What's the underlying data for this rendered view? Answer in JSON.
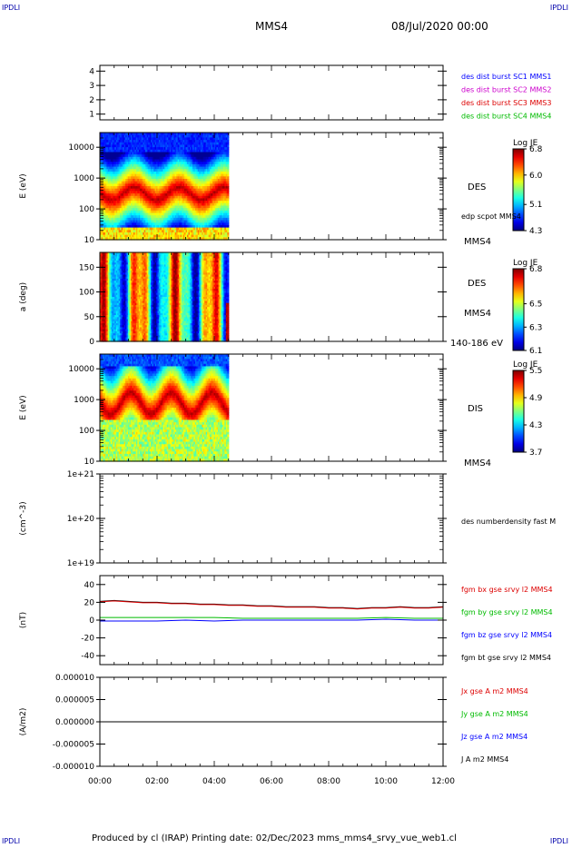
{
  "header": {
    "corner_tl": "IPDLI",
    "corner_tr": "IPDLI",
    "corner_bl": "IPDLI",
    "corner_br": "IPDLI",
    "title": "MMS4",
    "datetime": "08/Jul/2020 00:00"
  },
  "footer": {
    "text": "Produced by cl (IRAP)   Printing date: 02/Dec/2023   mms_mms4_srvy_vue_web1.cl"
  },
  "chart_data": [
    {
      "id": "panel1",
      "type": "line",
      "ylabel": "",
      "yrange": [
        0.6,
        4.4
      ],
      "yticks": [
        "1",
        "2",
        "3",
        "4"
      ],
      "legend": [
        {
          "label": "des dist burst SC1 MMS1",
          "color": "#0000ff"
        },
        {
          "label": "des dist burst SC2 MMS2",
          "color": "#cc00cc"
        },
        {
          "label": "des dist burst SC3 MMS3",
          "color": "#dd0000"
        },
        {
          "label": "des dist burst SC4 MMS4",
          "color": "#00bb00"
        }
      ]
    },
    {
      "id": "panel2",
      "type": "heatmap",
      "ylabel": "E (eV)",
      "yscale": "log",
      "yrange": [
        10,
        30000
      ],
      "yticks": [
        "10",
        "100",
        "1000",
        "10000"
      ],
      "data_end_hour": 4.5,
      "right_label": "DES",
      "right_sub": "edp scpot MMS4",
      "right_bottom": "MMS4",
      "colorbar": {
        "title": "Log JE",
        "ticks": [
          "6.8",
          "6.0",
          "5.1",
          "4.3"
        ],
        "range": [
          4.3,
          6.8
        ]
      }
    },
    {
      "id": "panel3",
      "type": "heatmap",
      "ylabel": "a (deg)",
      "yrange": [
        0,
        180
      ],
      "yticks": [
        "0",
        "50",
        "100",
        "150"
      ],
      "data_end_hour": 4.5,
      "right_label": "DES",
      "right_sub": "MMS4",
      "right_bottom": "140-186 eV",
      "colorbar": {
        "title": "Log JE",
        "ticks": [
          "6.8",
          "6.5",
          "6.3",
          "6.1"
        ],
        "range": [
          6.1,
          6.8
        ]
      }
    },
    {
      "id": "panel4",
      "type": "heatmap",
      "ylabel": "E (eV)",
      "yscale": "log",
      "yrange": [
        10,
        30000
      ],
      "yticks": [
        "10",
        "100",
        "1000",
        "10000"
      ],
      "data_end_hour": 4.5,
      "right_label": "DIS",
      "right_bottom": "MMS4",
      "colorbar": {
        "title": "Log JE",
        "ticks": [
          "5.5",
          "4.9",
          "4.3",
          "3.7"
        ],
        "range": [
          3.7,
          5.5
        ]
      }
    },
    {
      "id": "panel5",
      "type": "line",
      "ylabel": "(cm^-3)",
      "yscale": "log",
      "yrange": [
        1e+19,
        1e+21
      ],
      "yticks": [
        "1e+19",
        "1e+20",
        "1e+21"
      ],
      "legend": [
        {
          "label": "des numberdensity fast M",
          "color": "#000000"
        }
      ]
    },
    {
      "id": "panel6",
      "type": "line",
      "ylabel": "(nT)",
      "yrange": [
        -50,
        50
      ],
      "yticks": [
        "-40",
        "-20",
        "0",
        "20",
        "40"
      ],
      "legend": [
        {
          "label": "fgm bx gse srvy l2 MMS4",
          "color": "#dd0000"
        },
        {
          "label": "fgm by gse srvy l2 MMS4",
          "color": "#00bb00"
        },
        {
          "label": "fgm bz gse srvy l2 MMS4",
          "color": "#0000ff"
        },
        {
          "label": "fgm bt gse srvy l2 MMS4",
          "color": "#000000"
        }
      ],
      "series": [
        {
          "name": "fgm bt gse srvy l2 MMS4",
          "color": "#000000",
          "x": [
            0,
            0.5,
            1,
            1.5,
            2,
            2.5,
            3,
            3.5,
            4,
            4.5,
            5,
            5.5,
            6,
            6.5,
            7,
            7.5,
            8,
            8.5,
            9,
            9.5,
            10,
            10.5,
            11,
            11.5,
            12
          ],
          "y": [
            21,
            22,
            21,
            20,
            20,
            19,
            19,
            18,
            18,
            17,
            17,
            16,
            16,
            15,
            15,
            15,
            14,
            14,
            13,
            14,
            14,
            15,
            14,
            14,
            15
          ]
        },
        {
          "name": "fgm bx gse srvy l2 MMS4",
          "color": "#dd0000",
          "x": [
            0,
            0.5,
            1,
            1.5,
            2,
            2.5,
            3,
            3.5,
            4,
            4.5,
            5,
            5.5,
            6,
            6.5,
            7,
            7.5,
            8,
            8.5,
            9,
            9.5,
            10,
            10.5,
            11,
            11.5,
            12
          ],
          "y": [
            20.5,
            21.5,
            20.5,
            19.5,
            19.5,
            18.5,
            18.5,
            17.5,
            17.5,
            16.5,
            16.5,
            15.5,
            15.5,
            14.5,
            14.5,
            14.5,
            13.5,
            13.5,
            12.5,
            13.5,
            13.5,
            14.5,
            13.5,
            13.5,
            14.5
          ]
        },
        {
          "name": "fgm by gse srvy l2 MMS4",
          "color": "#00bb00",
          "x": [
            0,
            1,
            2,
            3,
            4,
            5,
            6,
            7,
            8,
            9,
            10,
            11,
            12
          ],
          "y": [
            3,
            3,
            3,
            3,
            3,
            2,
            2,
            2,
            2,
            2,
            3,
            2,
            2
          ]
        },
        {
          "name": "fgm bz gse srvy l2 MMS4",
          "color": "#0000ff",
          "x": [
            0,
            1,
            2,
            3,
            4,
            5,
            6,
            7,
            8,
            9,
            10,
            11,
            12
          ],
          "y": [
            -1,
            -1,
            -1,
            0,
            -1,
            0,
            0,
            0,
            0,
            0,
            1,
            0,
            0
          ]
        }
      ]
    },
    {
      "id": "panel7",
      "type": "line",
      "ylabel": "(A/m2)",
      "yrange": [
        -1e-05,
        1e-05
      ],
      "yticks": [
        "-0.000010",
        "-0.000005",
        "0.000000",
        "0.000005",
        "0.000010"
      ],
      "legend": [
        {
          "label": "Jx gse A m2 MMS4",
          "color": "#dd0000"
        },
        {
          "label": "Jy gse A m2 MMS4",
          "color": "#00bb00"
        },
        {
          "label": "Jz gse A m2 MMS4",
          "color": "#0000ff"
        },
        {
          "label": "J A m2 MMS4",
          "color": "#000000"
        }
      ],
      "series": [
        {
          "name": "J A m2 MMS4",
          "color": "#000000",
          "x": [
            0,
            12
          ],
          "y": [
            0,
            0
          ]
        }
      ]
    }
  ],
  "xaxis": {
    "range": [
      0,
      12
    ],
    "ticks": [
      "00:00",
      "02:00",
      "04:00",
      "06:00",
      "08:00",
      "10:00",
      "12:00"
    ]
  }
}
